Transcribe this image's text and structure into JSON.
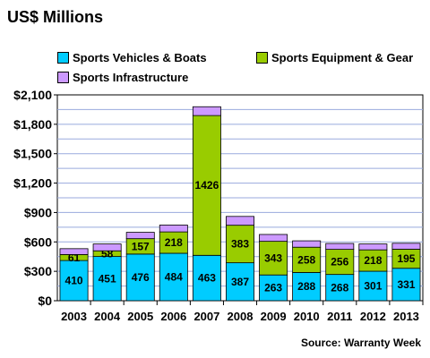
{
  "chart_title": "US$ Millions",
  "source": "Source: Warranty Week",
  "colors": {
    "sports_vehicles_boats": "#00ccff",
    "sports_equipment_gear": "#99cc00",
    "sports_infrastructure": "#cc99ff",
    "grid": "#99aadd",
    "plot_bg": "#ffffff"
  },
  "chart_data": {
    "type": "bar",
    "stacked": true,
    "title": "US$ Millions",
    "categories": [
      "2003",
      "2004",
      "2005",
      "2006",
      "2007",
      "2008",
      "2009",
      "2010",
      "2011",
      "2012",
      "2013"
    ],
    "series": [
      {
        "name": "Sports Vehicles & Boats",
        "values": [
          410,
          451,
          476,
          484,
          463,
          387,
          263,
          288,
          268,
          301,
          331
        ]
      },
      {
        "name": "Sports Equipment & Gear",
        "values": [
          61,
          58,
          157,
          218,
          1426,
          383,
          343,
          258,
          256,
          218,
          195
        ]
      },
      {
        "name": "Sports Infrastructure",
        "values": [
          60,
          70,
          65,
          70,
          90,
          90,
          70,
          65,
          60,
          60,
          60
        ]
      }
    ],
    "data_labels": {
      "Sports Vehicles & Boats": [
        "410",
        "451",
        "476",
        "484",
        "463",
        "387",
        "263",
        "288",
        "268",
        "301",
        "331"
      ],
      "Sports Equipment & Gear": [
        "61",
        "58",
        "157",
        "218",
        "1426",
        "383",
        "343",
        "258",
        "256",
        "218",
        "195"
      ]
    },
    "ylim": [
      0,
      2100
    ],
    "yticks": [
      0,
      300,
      600,
      900,
      1200,
      1500,
      1800,
      2100
    ],
    "ytick_labels": [
      "$0",
      "$300",
      "$600",
      "$900",
      "$1,200",
      "$1,500",
      "$1,800",
      "$2,100"
    ],
    "minor_grid_step": 150,
    "grid": true,
    "legend_position": "top",
    "xlabel": "",
    "ylabel": ""
  }
}
